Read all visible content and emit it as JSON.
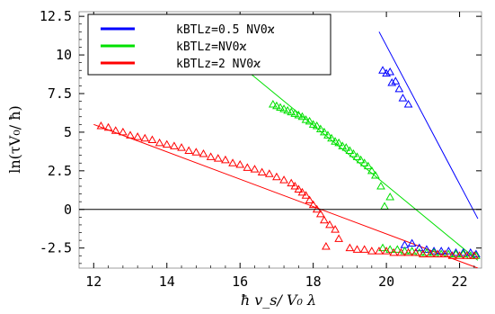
{
  "chart_data": {
    "type": "scatter",
    "xlabel": "ħ v_s/ V₀ λ",
    "ylabel": "ln(τV₀/ ħ)",
    "xlim": [
      11.6,
      22.6
    ],
    "ylim": [
      -3.8,
      12.8
    ],
    "x_ticks": [
      12,
      14,
      16,
      18,
      20,
      22
    ],
    "y_ticks": [
      -2.5,
      0,
      2.5,
      5,
      7.5,
      10,
      12.5
    ],
    "x_tick_labels": [
      "12",
      "14",
      "16",
      "18",
      "20",
      "22"
    ],
    "y_tick_labels": [
      "-2.5",
      "0",
      "2.5",
      "5",
      "7.5",
      "10",
      "12.5"
    ],
    "zero_line": true,
    "grid": false,
    "legend_position": "top-left",
    "marker": "triangle-open",
    "series": [
      {
        "name": "k_BTL_z=0.5 NV₀ϰ",
        "legend_label": "kBTLz=0.5 NV0ϰ",
        "color": "#0000ff",
        "points": [
          [
            19.9,
            9.0
          ],
          [
            20.0,
            8.8
          ],
          [
            20.1,
            8.9
          ],
          [
            20.15,
            8.2
          ],
          [
            20.25,
            8.3
          ],
          [
            20.35,
            7.8
          ],
          [
            20.45,
            7.2
          ],
          [
            20.6,
            6.8
          ],
          [
            20.5,
            -2.3
          ],
          [
            20.7,
            -2.2
          ],
          [
            20.9,
            -2.5
          ],
          [
            21.1,
            -2.6
          ],
          [
            21.3,
            -2.7
          ],
          [
            21.5,
            -2.7
          ],
          [
            21.7,
            -2.7
          ],
          [
            21.9,
            -2.8
          ],
          [
            22.1,
            -2.8
          ],
          [
            22.3,
            -2.8
          ],
          [
            22.45,
            -2.9
          ]
        ],
        "fit_line": [
          [
            19.8,
            11.5
          ],
          [
            22.5,
            -0.6
          ]
        ]
      },
      {
        "name": "k_BTL_z=NV₀ϰ",
        "legend_label": "kBTLz=NV0ϰ",
        "color": "#00e000",
        "points": [
          [
            16.9,
            6.8
          ],
          [
            17.0,
            6.7
          ],
          [
            17.1,
            6.6
          ],
          [
            17.2,
            6.5
          ],
          [
            17.3,
            6.4
          ],
          [
            17.4,
            6.3
          ],
          [
            17.5,
            6.2
          ],
          [
            17.6,
            6.1
          ],
          [
            17.7,
            6.0
          ],
          [
            17.8,
            5.8
          ],
          [
            17.9,
            5.7
          ],
          [
            18.0,
            5.5
          ],
          [
            18.1,
            5.4
          ],
          [
            18.2,
            5.2
          ],
          [
            18.3,
            5.0
          ],
          [
            18.4,
            4.8
          ],
          [
            18.5,
            4.6
          ],
          [
            18.6,
            4.4
          ],
          [
            18.7,
            4.3
          ],
          [
            18.8,
            4.1
          ],
          [
            18.9,
            4.0
          ],
          [
            19.0,
            3.8
          ],
          [
            19.1,
            3.6
          ],
          [
            19.2,
            3.4
          ],
          [
            19.3,
            3.2
          ],
          [
            19.4,
            3.0
          ],
          [
            19.5,
            2.8
          ],
          [
            19.6,
            2.5
          ],
          [
            19.7,
            2.2
          ],
          [
            19.85,
            1.5
          ],
          [
            20.1,
            0.8
          ],
          [
            19.95,
            0.2
          ],
          [
            19.9,
            -2.5
          ],
          [
            20.1,
            -2.6
          ],
          [
            20.3,
            -2.6
          ],
          [
            20.5,
            -2.7
          ],
          [
            20.7,
            -2.7
          ],
          [
            20.9,
            -2.8
          ],
          [
            21.1,
            -2.8
          ],
          [
            21.3,
            -2.8
          ],
          [
            21.5,
            -2.9
          ],
          [
            21.7,
            -2.9
          ],
          [
            21.9,
            -2.9
          ],
          [
            22.1,
            -2.9
          ],
          [
            22.3,
            -3.0
          ],
          [
            22.45,
            -3.0
          ]
        ],
        "fit_line": [
          [
            15.2,
            10.9
          ],
          [
            22.5,
            -3.3
          ]
        ]
      },
      {
        "name": "k_BTL_z=2 NV₀ϰ",
        "legend_label": "kBTLz=2 NV0ϰ",
        "color": "#ff0000",
        "points": [
          [
            12.2,
            5.4
          ],
          [
            12.4,
            5.3
          ],
          [
            12.6,
            5.1
          ],
          [
            12.8,
            5.0
          ],
          [
            13.0,
            4.8
          ],
          [
            13.2,
            4.7
          ],
          [
            13.4,
            4.6
          ],
          [
            13.6,
            4.5
          ],
          [
            13.8,
            4.3
          ],
          [
            14.0,
            4.2
          ],
          [
            14.2,
            4.1
          ],
          [
            14.4,
            4.0
          ],
          [
            14.6,
            3.8
          ],
          [
            14.8,
            3.7
          ],
          [
            15.0,
            3.6
          ],
          [
            15.2,
            3.4
          ],
          [
            15.4,
            3.3
          ],
          [
            15.6,
            3.2
          ],
          [
            15.8,
            3.0
          ],
          [
            16.0,
            2.9
          ],
          [
            16.2,
            2.7
          ],
          [
            16.4,
            2.6
          ],
          [
            16.6,
            2.4
          ],
          [
            16.8,
            2.3
          ],
          [
            17.0,
            2.1
          ],
          [
            17.2,
            1.9
          ],
          [
            17.4,
            1.7
          ],
          [
            17.5,
            1.5
          ],
          [
            17.6,
            1.3
          ],
          [
            17.7,
            1.1
          ],
          [
            17.8,
            0.9
          ],
          [
            17.9,
            0.6
          ],
          [
            18.0,
            0.3
          ],
          [
            18.1,
            0.0
          ],
          [
            18.2,
            -0.3
          ],
          [
            18.3,
            -0.7
          ],
          [
            18.45,
            -1.0
          ],
          [
            18.6,
            -1.3
          ],
          [
            18.7,
            -1.9
          ],
          [
            18.35,
            -2.4
          ],
          [
            19.0,
            -2.5
          ],
          [
            19.2,
            -2.6
          ],
          [
            19.4,
            -2.6
          ],
          [
            19.6,
            -2.7
          ],
          [
            19.8,
            -2.7
          ],
          [
            20.0,
            -2.7
          ],
          [
            20.2,
            -2.8
          ],
          [
            20.4,
            -2.8
          ],
          [
            20.6,
            -2.8
          ],
          [
            20.8,
            -2.8
          ],
          [
            21.0,
            -2.9
          ],
          [
            21.2,
            -2.9
          ],
          [
            21.4,
            -2.9
          ],
          [
            21.6,
            -2.9
          ],
          [
            21.8,
            -3.0
          ],
          [
            22.0,
            -3.0
          ],
          [
            22.2,
            -3.0
          ],
          [
            22.4,
            -3.0
          ]
        ],
        "fit_line": [
          [
            12.0,
            5.5
          ],
          [
            22.5,
            -3.8
          ]
        ]
      }
    ]
  }
}
